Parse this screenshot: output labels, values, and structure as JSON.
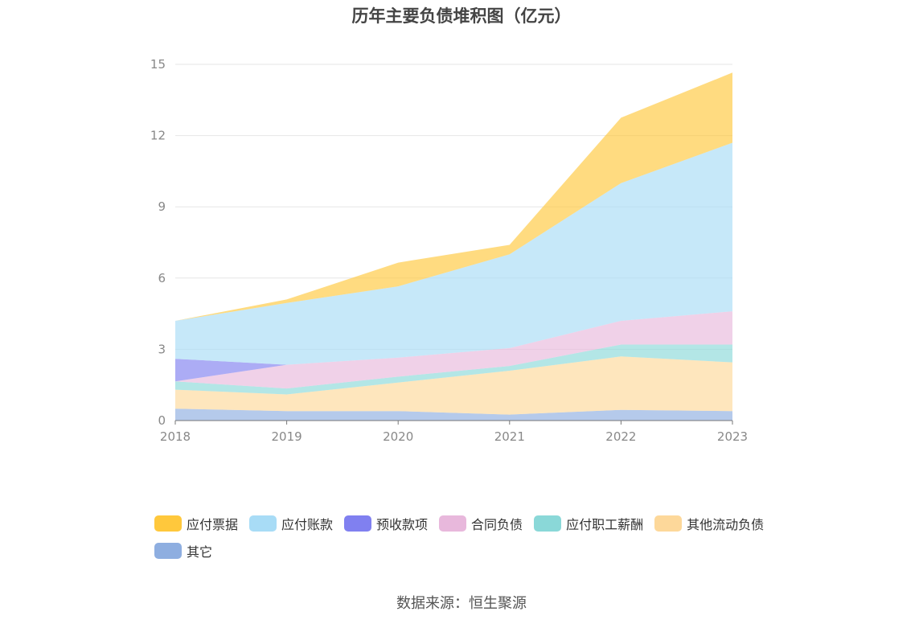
{
  "chart_data": {
    "type": "area",
    "title": "历年主要负债堆积图（亿元）",
    "x": [
      "2018",
      "2019",
      "2020",
      "2021",
      "2022",
      "2023"
    ],
    "ylim": [
      0,
      15
    ],
    "yticks": [
      0,
      3,
      6,
      9,
      12,
      15
    ],
    "grid": true,
    "legend_position": "bottom",
    "stacked": true,
    "series": [
      {
        "name": "其它",
        "color": "#8eaee0",
        "values": [
          0.5,
          0.4,
          0.4,
          0.25,
          0.45,
          0.4
        ]
      },
      {
        "name": "其他流动负债",
        "color": "#fdd89a",
        "values": [
          0.8,
          0.7,
          1.2,
          1.85,
          2.25,
          2.05
        ]
      },
      {
        "name": "应付职工薪酬",
        "color": "#8ad8d8",
        "values": [
          0.35,
          0.25,
          0.25,
          0.2,
          0.5,
          0.75
        ]
      },
      {
        "name": "合同负债",
        "color": "#e8b8dc",
        "values": [
          0.0,
          1.0,
          0.8,
          0.75,
          1.0,
          1.4
        ]
      },
      {
        "name": "预收款项",
        "color": "#8080f0",
        "values": [
          0.95,
          0.0,
          0.0,
          0.0,
          0.0,
          0.0
        ]
      },
      {
        "name": "应付账款",
        "color": "#a8dcf6",
        "values": [
          1.6,
          2.6,
          3.0,
          3.95,
          5.8,
          7.1
        ]
      },
      {
        "name": "应付票据",
        "color": "#ffc83c",
        "values": [
          0.0,
          0.15,
          1.0,
          0.4,
          2.75,
          2.95
        ]
      }
    ]
  },
  "source_text": "数据来源：恒生聚源"
}
